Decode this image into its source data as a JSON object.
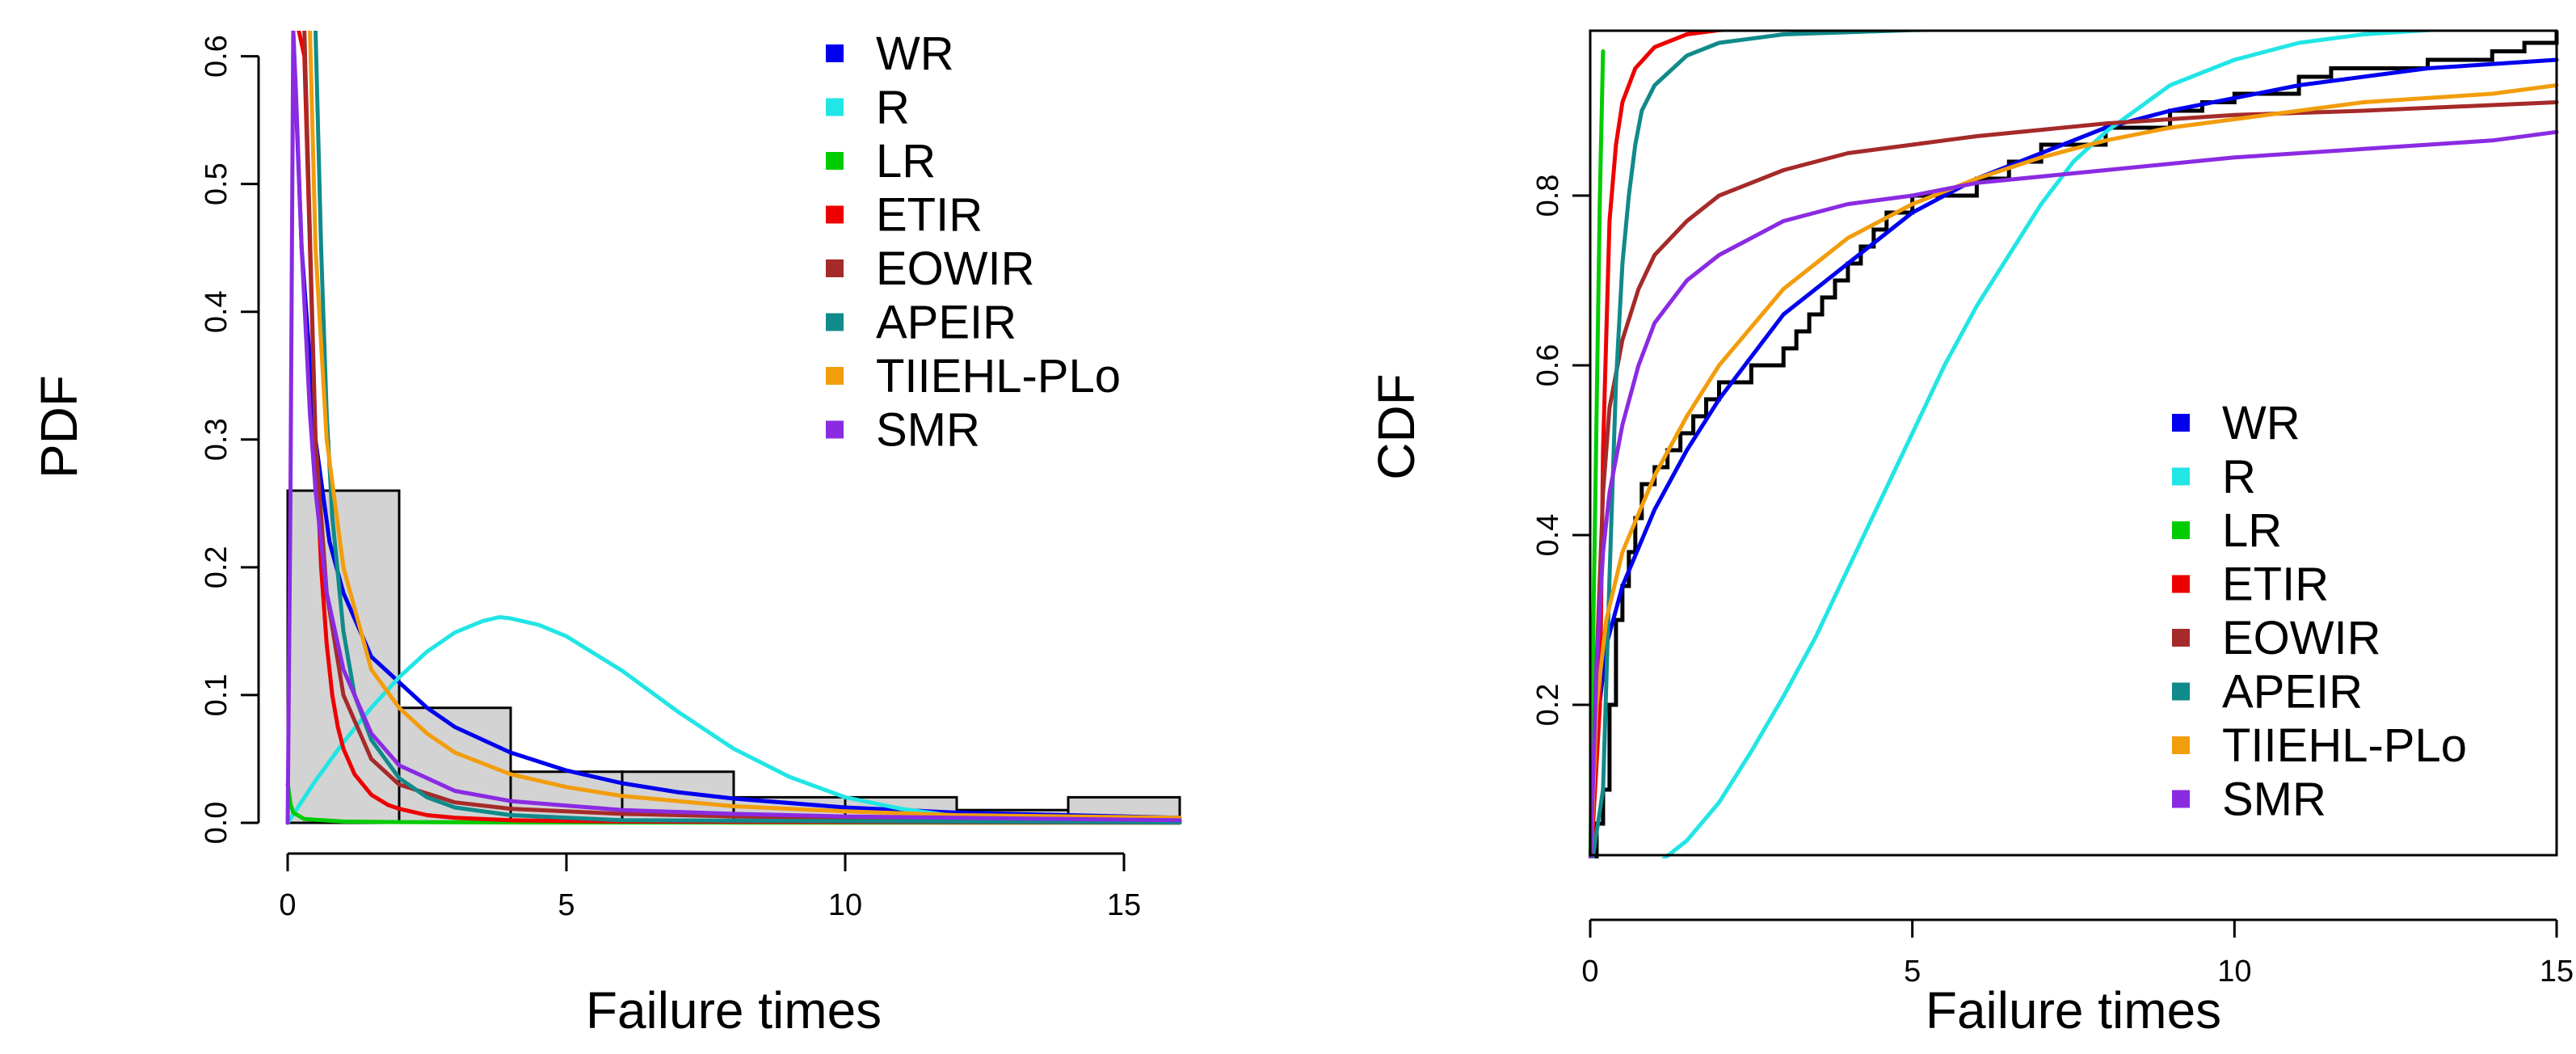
{
  "chart_data": [
    {
      "type": "histogram",
      "xlabel": "Failure times",
      "ylabel": "PDF",
      "xlim": [
        0,
        16
      ],
      "ylim": [
        0,
        0.62
      ],
      "xticks": [
        0,
        5,
        10,
        15
      ],
      "yticks": [
        0.0,
        0.1,
        0.2,
        0.3,
        0.4,
        0.5,
        0.6
      ],
      "ytick_labels": [
        "0.0",
        "0.1",
        "0.2",
        "0.3",
        "0.4",
        "0.5",
        "0.6"
      ],
      "histogram": {
        "bins": [
          [
            0,
            2
          ],
          [
            2,
            4
          ],
          [
            4,
            6
          ],
          [
            6,
            8
          ],
          [
            8,
            10
          ],
          [
            10,
            12
          ],
          [
            12,
            14
          ],
          [
            14,
            16
          ]
        ],
        "density": [
          0.26,
          0.09,
          0.04,
          0.04,
          0.02,
          0.02,
          0.01,
          0.02
        ],
        "fill": "#d3d3d3"
      },
      "legend_position": "top-center",
      "series": [
        {
          "name": "WR",
          "color": "#0000ee",
          "x": [
            0.1,
            0.25,
            0.5,
            0.75,
            1,
            1.5,
            2,
            2.5,
            3,
            4,
            5,
            6,
            7,
            8,
            10,
            12,
            14,
            16
          ],
          "y": [
            0.62,
            0.45,
            0.3,
            0.22,
            0.18,
            0.13,
            0.11,
            0.09,
            0.075,
            0.055,
            0.041,
            0.031,
            0.024,
            0.019,
            0.012,
            0.008,
            0.006,
            0.004
          ]
        },
        {
          "name": "R",
          "color": "#22e5e5",
          "x": [
            0,
            0.5,
            1,
            1.5,
            2,
            2.5,
            3,
            3.5,
            3.8,
            4,
            4.5,
            5,
            6,
            7,
            8,
            9,
            10,
            11,
            12,
            13,
            14,
            15,
            16
          ],
          "y": [
            0,
            0.033,
            0.063,
            0.09,
            0.114,
            0.134,
            0.149,
            0.158,
            0.161,
            0.16,
            0.155,
            0.146,
            0.119,
            0.087,
            0.058,
            0.036,
            0.02,
            0.011,
            0.005,
            0.002,
            0.001,
            0.0005,
            0.0002
          ]
        },
        {
          "name": "LR",
          "color": "#00cc00",
          "x": [
            0,
            0.02,
            0.05,
            0.1,
            0.3,
            1,
            2,
            4,
            8,
            16
          ],
          "y": [
            0.03,
            0.025,
            0.015,
            0.008,
            0.003,
            0.001,
            0.0006,
            0.0003,
            0.0002,
            0.0001
          ]
        },
        {
          "name": "ETIR",
          "color": "#ee0000",
          "x": [
            0.2,
            0.3,
            0.4,
            0.5,
            0.6,
            0.7,
            0.8,
            0.9,
            1,
            1.2,
            1.5,
            1.8,
            2,
            2.5,
            3,
            4,
            6,
            16
          ],
          "y": [
            0.62,
            0.6,
            0.45,
            0.3,
            0.2,
            0.14,
            0.1,
            0.075,
            0.058,
            0.038,
            0.022,
            0.014,
            0.011,
            0.006,
            0.004,
            0.002,
            0.001,
            0.0002
          ]
        },
        {
          "name": "EOWIR",
          "color": "#a52a2a",
          "x": [
            0.3,
            0.5,
            0.7,
            1,
            1.5,
            2,
            3,
            4,
            6,
            8,
            10,
            12,
            14,
            16
          ],
          "y": [
            0.62,
            0.3,
            0.18,
            0.1,
            0.05,
            0.03,
            0.016,
            0.011,
            0.007,
            0.005,
            0.004,
            0.003,
            0.003,
            0.002
          ]
        },
        {
          "name": "APEIR",
          "color": "#108a8a",
          "x": [
            0.5,
            0.6,
            0.7,
            0.8,
            1,
            1.2,
            1.5,
            2,
            2.5,
            3,
            4,
            6,
            16
          ],
          "y": [
            0.62,
            0.45,
            0.32,
            0.24,
            0.15,
            0.1,
            0.065,
            0.035,
            0.02,
            0.012,
            0.006,
            0.002,
            0.0003
          ]
        },
        {
          "name": "TIIEHL-PLo",
          "color": "#f29d0c",
          "x": [
            0.4,
            0.5,
            0.7,
            1,
            1.5,
            2,
            2.5,
            3,
            4,
            5,
            6,
            8,
            10,
            12,
            14,
            16
          ],
          "y": [
            0.62,
            0.45,
            0.3,
            0.2,
            0.12,
            0.09,
            0.07,
            0.055,
            0.038,
            0.028,
            0.021,
            0.013,
            0.009,
            0.006,
            0.005,
            0.004
          ]
        },
        {
          "name": "SMR",
          "color": "#8a2be2",
          "x": [
            0,
            0.05,
            0.1,
            0.15,
            0.25,
            0.4,
            0.5,
            0.7,
            1,
            1.5,
            2,
            3,
            4,
            6,
            8,
            10,
            12,
            14,
            16
          ],
          "y": [
            0,
            0.25,
            0.62,
            0.57,
            0.45,
            0.32,
            0.26,
            0.18,
            0.12,
            0.07,
            0.045,
            0.025,
            0.017,
            0.01,
            0.007,
            0.005,
            0.004,
            0.003,
            0.002
          ]
        }
      ]
    },
    {
      "type": "line",
      "xlabel": "Failure times",
      "ylabel": "CDF",
      "xlim": [
        0,
        15
      ],
      "ylim": [
        0,
        1
      ],
      "xticks": [
        0,
        5,
        10,
        15
      ],
      "yticks": [
        0.2,
        0.4,
        0.6,
        0.8
      ],
      "ytick_labels": [
        "0.2",
        "0.4",
        "0.6",
        "0.8"
      ],
      "legend_position": "bottom-right",
      "empirical_cdf": {
        "color": "#000000",
        "x": [
          0,
          0.1,
          0.2,
          0.3,
          0.4,
          0.5,
          0.6,
          0.7,
          0.8,
          1.0,
          1.2,
          1.4,
          1.6,
          1.8,
          2.0,
          2.5,
          3.0,
          3.2,
          3.4,
          3.6,
          3.8,
          4.0,
          4.2,
          4.4,
          4.6,
          5.0,
          6.0,
          6.5,
          7.0,
          8.0,
          9.0,
          9.5,
          10.0,
          11.0,
          11.5,
          12.0,
          13.0,
          14.0,
          14.5,
          15.0
        ],
        "y": [
          0.02,
          0.06,
          0.1,
          0.2,
          0.3,
          0.34,
          0.38,
          0.42,
          0.46,
          0.48,
          0.5,
          0.52,
          0.54,
          0.56,
          0.58,
          0.6,
          0.62,
          0.64,
          0.66,
          0.68,
          0.7,
          0.72,
          0.74,
          0.76,
          0.78,
          0.8,
          0.82,
          0.84,
          0.86,
          0.88,
          0.9,
          0.91,
          0.92,
          0.94,
          0.95,
          0.95,
          0.96,
          0.97,
          0.98,
          1.0
        ]
      },
      "series": [
        {
          "name": "WR",
          "color": "#0000ee",
          "x": [
            0,
            0.1,
            0.25,
            0.5,
            1,
            1.5,
            2,
            2.5,
            3,
            3.5,
            4,
            5,
            6,
            7,
            8,
            9,
            10,
            11,
            12,
            13,
            14,
            15
          ],
          "y": [
            0,
            0.17,
            0.27,
            0.34,
            0.43,
            0.5,
            0.56,
            0.61,
            0.66,
            0.69,
            0.72,
            0.78,
            0.82,
            0.85,
            0.88,
            0.9,
            0.915,
            0.93,
            0.94,
            0.95,
            0.955,
            0.96
          ]
        },
        {
          "name": "R",
          "color": "#22e5e5",
          "x": [
            0.8,
            1,
            1.5,
            2,
            2.5,
            3,
            3.5,
            4,
            4.5,
            5,
            5.5,
            6,
            6.5,
            7,
            7.5,
            8,
            9,
            10,
            11,
            12,
            13,
            14,
            15
          ],
          "y": [
            0,
            0.01,
            0.04,
            0.085,
            0.145,
            0.21,
            0.28,
            0.36,
            0.44,
            0.52,
            0.6,
            0.67,
            0.73,
            0.79,
            0.84,
            0.875,
            0.93,
            0.96,
            0.98,
            0.99,
            0.995,
            0.998,
            1.0
          ]
        },
        {
          "name": "LR",
          "color": "#00cc00",
          "x": [
            0,
            0.05,
            0.1,
            0.15,
            0.2
          ],
          "y": [
            0,
            0.3,
            0.55,
            0.8,
            0.97
          ]
        },
        {
          "name": "ETIR",
          "color": "#ee0000",
          "x": [
            0,
            0.15,
            0.2,
            0.3,
            0.4,
            0.5,
            0.7,
            1,
            1.5,
            2,
            3,
            5,
            15
          ],
          "y": [
            0,
            0.2,
            0.5,
            0.77,
            0.86,
            0.91,
            0.95,
            0.975,
            0.99,
            0.995,
            0.998,
            0.999,
            1.0
          ]
        },
        {
          "name": "EOWIR",
          "color": "#a52a2a",
          "x": [
            0,
            0.1,
            0.2,
            0.3,
            0.5,
            0.75,
            1,
            1.5,
            2,
            3,
            4,
            5,
            6,
            8,
            10,
            12,
            15
          ],
          "y": [
            0,
            0.25,
            0.45,
            0.55,
            0.63,
            0.69,
            0.73,
            0.77,
            0.8,
            0.83,
            0.85,
            0.86,
            0.87,
            0.885,
            0.895,
            0.9,
            0.91
          ]
        },
        {
          "name": "APEIR",
          "color": "#108a8a",
          "x": [
            0,
            0.2,
            0.3,
            0.4,
            0.5,
            0.6,
            0.7,
            0.8,
            1,
            1.5,
            2,
            3,
            5,
            8,
            15
          ],
          "y": [
            0,
            0.1,
            0.35,
            0.58,
            0.72,
            0.8,
            0.86,
            0.9,
            0.93,
            0.965,
            0.98,
            0.99,
            0.995,
            0.998,
            1.0
          ]
        },
        {
          "name": "TIIEHL-PLo",
          "color": "#f29d0c",
          "x": [
            0,
            0.1,
            0.25,
            0.5,
            1,
            1.5,
            2,
            3,
            4,
            5,
            6,
            7,
            8,
            9,
            10,
            11,
            12,
            13,
            14,
            15
          ],
          "y": [
            0,
            0.2,
            0.3,
            0.38,
            0.47,
            0.54,
            0.6,
            0.69,
            0.75,
            0.79,
            0.82,
            0.845,
            0.865,
            0.88,
            0.89,
            0.9,
            0.91,
            0.915,
            0.92,
            0.93
          ]
        },
        {
          "name": "SMR",
          "color": "#8a2be2",
          "x": [
            0,
            0.1,
            0.2,
            0.3,
            0.5,
            0.75,
            1,
            1.5,
            2,
            3,
            4,
            5,
            6,
            8,
            10,
            12,
            14,
            15
          ],
          "y": [
            0,
            0.25,
            0.38,
            0.45,
            0.53,
            0.6,
            0.65,
            0.7,
            0.73,
            0.77,
            0.79,
            0.8,
            0.815,
            0.83,
            0.845,
            0.855,
            0.865,
            0.875
          ]
        }
      ]
    }
  ]
}
